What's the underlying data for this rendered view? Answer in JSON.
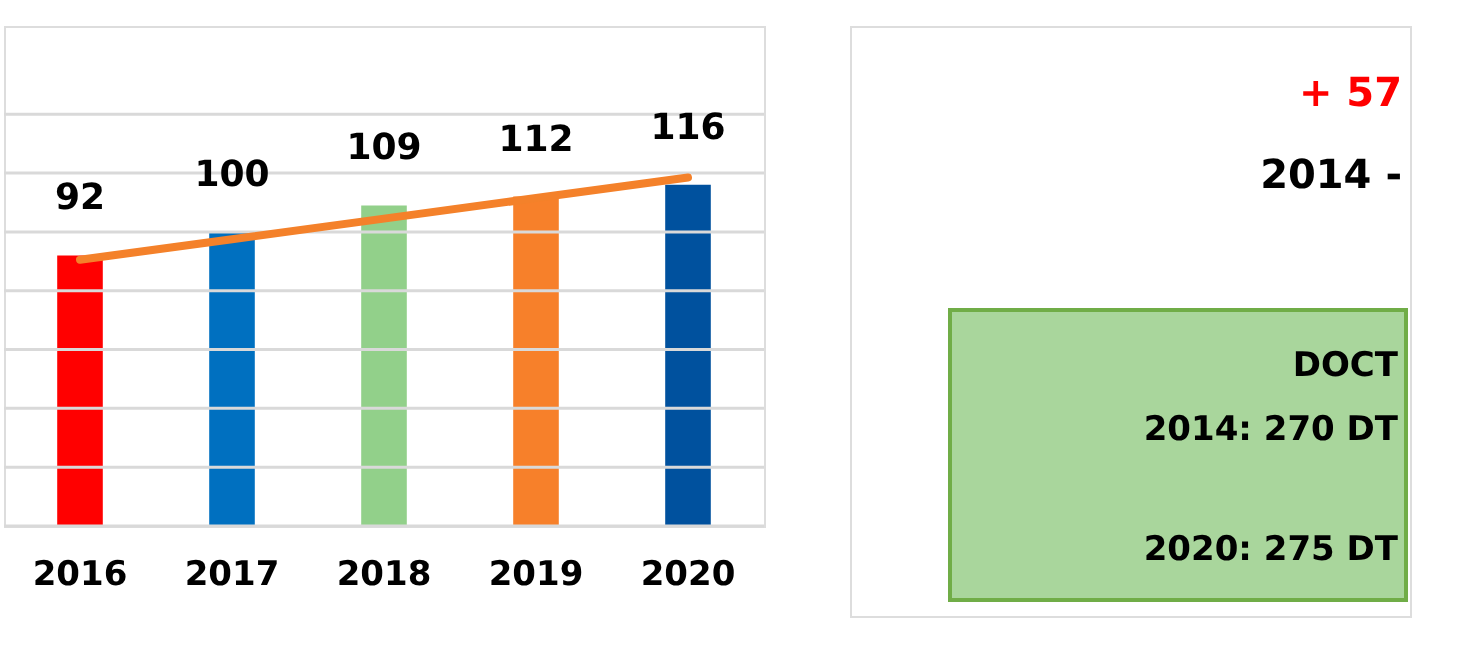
{
  "chart_data": [
    {
      "type": "bar",
      "categories": [
        "2016",
        "2017",
        "2018",
        "2019",
        "2020"
      ],
      "series": [
        {
          "type": "bar",
          "values": [
            92,
            100,
            109,
            112,
            116
          ],
          "colors": [
            "#ff0000",
            "#0070c0",
            "#92d08a",
            "#f7802a",
            "#00519e"
          ],
          "value_labels": [
            "92",
            "100",
            "109",
            "112",
            "116"
          ]
        },
        {
          "type": "line",
          "color": "#f4812a",
          "values": [
            90.5,
            97.5,
            104.5,
            111.5,
            118.5
          ]
        }
      ],
      "ylim": [
        0,
        170
      ],
      "yticks": [
        {
          "value": 0,
          "label": null
        },
        {
          "value": 20,
          "label": null
        },
        {
          "value": 40,
          "label": null
        },
        {
          "value": 60,
          "label": null
        },
        {
          "value": 80,
          "label": null
        },
        {
          "value": 100,
          "label": null
        },
        {
          "value": 120,
          "label": null
        },
        {
          "value": 140,
          "label": null
        }
      ],
      "tick_labels": "x",
      "grid": "y"
    },
    {
      "type": "other",
      "title": "+ 57",
      "subtitle": "2014 -",
      "color": "#a9d69c",
      "annotations": [
        "DOCT",
        "2014: 270 DT",
        "2020: 275 DT"
      ]
    }
  ]
}
